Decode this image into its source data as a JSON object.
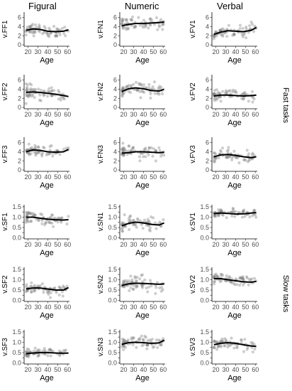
{
  "columns": [
    "Figural",
    "Numeric",
    "Verbal"
  ],
  "side_labels": [
    "Fast tasks",
    "Slow tasks"
  ],
  "chart_data": [
    {
      "type": "scatter",
      "panel": "v.FF1",
      "ylabel": "v.FF1",
      "xlabel": "Age",
      "xticks": [
        20,
        30,
        40,
        50,
        60
      ],
      "yticks": [
        0,
        2,
        4,
        6
      ],
      "ylim": [
        -0.3,
        7.2
      ],
      "xlim": [
        16,
        62
      ],
      "trend": [
        [
          18,
          3.2
        ],
        [
          25,
          3.5
        ],
        [
          32,
          3.4
        ],
        [
          40,
          3.0
        ],
        [
          48,
          2.9
        ],
        [
          56,
          3.0
        ],
        [
          61,
          3.3
        ]
      ],
      "mean": 3.2,
      "spread": 0.9
    },
    {
      "type": "scatter",
      "panel": "v.FN1",
      "ylabel": "v.FN1",
      "xlabel": "Age",
      "xticks": [
        20,
        30,
        40,
        50,
        60
      ],
      "yticks": [
        0,
        2,
        4,
        6
      ],
      "ylim": [
        -0.3,
        7.2
      ],
      "xlim": [
        16,
        62
      ],
      "trend": [
        [
          18,
          4.2
        ],
        [
          25,
          4.5
        ],
        [
          32,
          4.7
        ],
        [
          40,
          4.7
        ],
        [
          48,
          4.8
        ],
        [
          56,
          4.9
        ],
        [
          61,
          5.0
        ]
      ],
      "mean": 4.7,
      "spread": 1.0
    },
    {
      "type": "scatter",
      "panel": "v.FV1",
      "ylabel": "v.FV1",
      "xlabel": "Age",
      "xticks": [
        20,
        30,
        40,
        50,
        60
      ],
      "yticks": [
        0,
        2,
        4,
        6
      ],
      "ylim": [
        -0.3,
        7.2
      ],
      "xlim": [
        16,
        62
      ],
      "trend": [
        [
          18,
          2.3
        ],
        [
          25,
          2.8
        ],
        [
          32,
          3.1
        ],
        [
          40,
          3.0
        ],
        [
          48,
          2.9
        ],
        [
          56,
          3.2
        ],
        [
          61,
          3.8
        ]
      ],
      "mean": 3.0,
      "spread": 0.9
    },
    {
      "type": "scatter",
      "panel": "v.FF2",
      "ylabel": "v.FF2",
      "xlabel": "Age",
      "xticks": [
        20,
        30,
        40,
        50,
        60
      ],
      "yticks": [
        0,
        2,
        4,
        6
      ],
      "ylim": [
        -0.3,
        7.2
      ],
      "xlim": [
        16,
        62
      ],
      "trend": [
        [
          18,
          3.3
        ],
        [
          25,
          3.4
        ],
        [
          32,
          3.3
        ],
        [
          40,
          3.1
        ],
        [
          48,
          2.9
        ],
        [
          56,
          2.6
        ],
        [
          61,
          2.4
        ]
      ],
      "mean": 3.0,
      "spread": 1.0
    },
    {
      "type": "scatter",
      "panel": "v.FN2",
      "ylabel": "v.FN2",
      "xlabel": "Age",
      "xticks": [
        20,
        30,
        40,
        50,
        60
      ],
      "yticks": [
        0,
        2,
        4,
        6
      ],
      "ylim": [
        -0.3,
        7.2
      ],
      "xlim": [
        16,
        62
      ],
      "trend": [
        [
          18,
          3.5
        ],
        [
          25,
          4.1
        ],
        [
          32,
          4.3
        ],
        [
          40,
          4.1
        ],
        [
          48,
          3.7
        ],
        [
          56,
          3.6
        ],
        [
          61,
          4.0
        ]
      ],
      "mean": 3.9,
      "spread": 1.0
    },
    {
      "type": "scatter",
      "panel": "v.FV2",
      "ylabel": "v.FV2",
      "xlabel": "Age",
      "xticks": [
        20,
        30,
        40,
        50,
        60
      ],
      "yticks": [
        0,
        2,
        4,
        6
      ],
      "ylim": [
        -0.3,
        7.2
      ],
      "xlim": [
        16,
        62
      ],
      "trend": [
        [
          18,
          2.5
        ],
        [
          25,
          2.7
        ],
        [
          32,
          2.7
        ],
        [
          40,
          2.6
        ],
        [
          48,
          2.5
        ],
        [
          56,
          2.6
        ],
        [
          61,
          2.7
        ]
      ],
      "mean": 2.6,
      "spread": 0.8
    },
    {
      "type": "scatter",
      "panel": "v.FF3",
      "ylabel": "v.FF3",
      "xlabel": "Age",
      "xticks": [
        20,
        30,
        40,
        50,
        60
      ],
      "yticks": [
        0,
        2,
        4,
        6
      ],
      "ylim": [
        -0.3,
        7.2
      ],
      "xlim": [
        16,
        62
      ],
      "trend": [
        [
          18,
          4.0
        ],
        [
          25,
          4.4
        ],
        [
          32,
          4.3
        ],
        [
          40,
          4.0
        ],
        [
          48,
          3.9
        ],
        [
          56,
          4.0
        ],
        [
          61,
          4.5
        ]
      ],
      "mean": 4.1,
      "spread": 0.9
    },
    {
      "type": "scatter",
      "panel": "v.FN3",
      "ylabel": "v.FN3",
      "xlabel": "Age",
      "xticks": [
        20,
        30,
        40,
        50,
        60
      ],
      "yticks": [
        0,
        2,
        4,
        6
      ],
      "ylim": [
        -0.3,
        7.2
      ],
      "xlim": [
        16,
        62
      ],
      "trend": [
        [
          18,
          3.7
        ],
        [
          25,
          3.8
        ],
        [
          32,
          4.0
        ],
        [
          40,
          4.0
        ],
        [
          48,
          3.9
        ],
        [
          56,
          3.8
        ],
        [
          61,
          3.9
        ]
      ],
      "mean": 3.9,
      "spread": 1.0
    },
    {
      "type": "scatter",
      "panel": "v.FV3",
      "ylabel": "v.FV3",
      "xlabel": "Age",
      "xticks": [
        20,
        30,
        40,
        50,
        60
      ],
      "yticks": [
        0,
        2,
        4,
        6
      ],
      "ylim": [
        -0.3,
        7.2
      ],
      "xlim": [
        16,
        62
      ],
      "trend": [
        [
          18,
          2.9
        ],
        [
          25,
          3.3
        ],
        [
          32,
          3.4
        ],
        [
          40,
          3.2
        ],
        [
          48,
          2.9
        ],
        [
          56,
          2.7
        ],
        [
          61,
          2.9
        ]
      ],
      "mean": 3.1,
      "spread": 0.9
    },
    {
      "type": "scatter",
      "panel": "v.SF1",
      "ylabel": "v.SF1",
      "xlabel": "Age",
      "xticks": [
        20,
        30,
        40,
        50,
        60
      ],
      "yticks": [
        0.0,
        0.25,
        0.5,
        0.75,
        1.0,
        1.25,
        1.5
      ],
      "ytick_labels": [
        "0.0",
        "",
        "0.5",
        "",
        "1.0",
        "",
        "1.5"
      ],
      "ylim": [
        -0.05,
        1.6
      ],
      "xlim": [
        16,
        62
      ],
      "trend": [
        [
          18,
          1.0
        ],
        [
          25,
          1.0
        ],
        [
          32,
          0.95
        ],
        [
          40,
          0.9
        ],
        [
          48,
          0.87
        ],
        [
          56,
          0.86
        ],
        [
          61,
          0.88
        ]
      ],
      "mean": 0.93,
      "spread": 0.2
    },
    {
      "type": "scatter",
      "panel": "v.SN1",
      "ylabel": "v.SN1",
      "xlabel": "Age",
      "xticks": [
        20,
        30,
        40,
        50,
        60
      ],
      "yticks": [
        0.0,
        0.25,
        0.5,
        0.75,
        1.0,
        1.25,
        1.5
      ],
      "ytick_labels": [
        "0.0",
        "",
        "0.5",
        "",
        "1.0",
        "",
        "1.5"
      ],
      "ylim": [
        -0.05,
        1.6
      ],
      "xlim": [
        16,
        62
      ],
      "trend": [
        [
          18,
          0.58
        ],
        [
          25,
          0.7
        ],
        [
          32,
          0.76
        ],
        [
          40,
          0.72
        ],
        [
          48,
          0.65
        ],
        [
          56,
          0.62
        ],
        [
          61,
          0.72
        ]
      ],
      "mean": 0.7,
      "spread": 0.22
    },
    {
      "type": "scatter",
      "panel": "v.SV1",
      "ylabel": "v.SV1",
      "xlabel": "Age",
      "xticks": [
        20,
        30,
        40,
        50,
        60
      ],
      "yticks": [
        0.0,
        0.25,
        0.5,
        0.75,
        1.0,
        1.25,
        1.5
      ],
      "ytick_labels": [
        "0.0",
        "",
        "0.5",
        "",
        "1.0",
        "",
        "1.5"
      ],
      "ylim": [
        -0.05,
        1.6
      ],
      "xlim": [
        16,
        62
      ],
      "trend": [
        [
          18,
          1.17
        ],
        [
          25,
          1.2
        ],
        [
          32,
          1.18
        ],
        [
          40,
          1.15
        ],
        [
          48,
          1.16
        ],
        [
          56,
          1.2
        ],
        [
          61,
          1.22
        ]
      ],
      "mean": 1.18,
      "spread": 0.15
    },
    {
      "type": "scatter",
      "panel": "v.SF2",
      "ylabel": "v.SF2",
      "xlabel": "Age",
      "xticks": [
        20,
        30,
        40,
        50,
        60
      ],
      "yticks": [
        0.0,
        0.25,
        0.5,
        0.75,
        1.0,
        1.25,
        1.5
      ],
      "ytick_labels": [
        "0.0",
        "",
        "0.5",
        "",
        "1.0",
        "",
        "1.5"
      ],
      "ylim": [
        -0.05,
        1.6
      ],
      "xlim": [
        16,
        62
      ],
      "trend": [
        [
          18,
          0.55
        ],
        [
          25,
          0.6
        ],
        [
          32,
          0.6
        ],
        [
          40,
          0.55
        ],
        [
          48,
          0.5
        ],
        [
          56,
          0.5
        ],
        [
          61,
          0.62
        ]
      ],
      "mean": 0.57,
      "spread": 0.2
    },
    {
      "type": "scatter",
      "panel": "v.SN2",
      "ylabel": "v.SN2",
      "xlabel": "Age",
      "xticks": [
        20,
        30,
        40,
        50,
        60
      ],
      "yticks": [
        0.0,
        0.25,
        0.5,
        0.75,
        1.0,
        1.25,
        1.5
      ],
      "ytick_labels": [
        "0.0",
        "",
        "0.5",
        "",
        "1.0",
        "",
        "1.5"
      ],
      "ylim": [
        -0.05,
        1.6
      ],
      "xlim": [
        16,
        62
      ],
      "trend": [
        [
          18,
          0.72
        ],
        [
          25,
          0.8
        ],
        [
          32,
          0.83
        ],
        [
          40,
          0.82
        ],
        [
          48,
          0.8
        ],
        [
          56,
          0.78
        ],
        [
          61,
          0.8
        ]
      ],
      "mean": 0.8,
      "spread": 0.25
    },
    {
      "type": "scatter",
      "panel": "v.SV2",
      "ylabel": "v.SV2",
      "xlabel": "Age",
      "xticks": [
        20,
        30,
        40,
        50,
        60
      ],
      "yticks": [
        0.0,
        0.25,
        0.5,
        0.75,
        1.0,
        1.25,
        1.5
      ],
      "ytick_labels": [
        "0.0",
        "",
        "0.5",
        "",
        "1.0",
        "",
        "1.5"
      ],
      "ylim": [
        -0.05,
        1.6
      ],
      "xlim": [
        16,
        62
      ],
      "trend": [
        [
          18,
          1.05
        ],
        [
          25,
          1.05
        ],
        [
          32,
          1.0
        ],
        [
          40,
          0.95
        ],
        [
          48,
          0.9
        ],
        [
          56,
          0.88
        ],
        [
          61,
          0.92
        ]
      ],
      "mean": 0.97,
      "spread": 0.2
    },
    {
      "type": "scatter",
      "panel": "v.SF3",
      "ylabel": "v.SF3",
      "xlabel": "Age",
      "xticks": [
        20,
        30,
        40,
        50,
        60
      ],
      "yticks": [
        0.0,
        0.25,
        0.5,
        0.75,
        1.0,
        1.25,
        1.5
      ],
      "ytick_labels": [
        "0.0",
        "",
        "0.5",
        "",
        "1.0",
        "",
        "1.5"
      ],
      "ylim": [
        -0.05,
        1.6
      ],
      "xlim": [
        16,
        62
      ],
      "trend": [
        [
          18,
          0.45
        ],
        [
          25,
          0.48
        ],
        [
          32,
          0.5
        ],
        [
          40,
          0.5
        ],
        [
          48,
          0.48
        ],
        [
          56,
          0.47
        ],
        [
          61,
          0.48
        ]
      ],
      "mean": 0.48,
      "spread": 0.15
    },
    {
      "type": "scatter",
      "panel": "v.SN3",
      "ylabel": "v.SN3",
      "xlabel": "Age",
      "xticks": [
        20,
        30,
        40,
        50,
        60
      ],
      "yticks": [
        0.0,
        0.25,
        0.5,
        0.75,
        1.0,
        1.25,
        1.5
      ],
      "ytick_labels": [
        "0.0",
        "",
        "0.5",
        "",
        "1.0",
        "",
        "1.5"
      ],
      "ylim": [
        -0.05,
        1.6
      ],
      "xlim": [
        16,
        62
      ],
      "trend": [
        [
          18,
          0.9
        ],
        [
          25,
          0.98
        ],
        [
          32,
          1.0
        ],
        [
          40,
          0.98
        ],
        [
          48,
          0.95
        ],
        [
          56,
          0.97
        ],
        [
          61,
          1.1
        ]
      ],
      "mean": 0.98,
      "spread": 0.2
    },
    {
      "type": "scatter",
      "panel": "v.SV3",
      "ylabel": "v.SV3",
      "xlabel": "Age",
      "xticks": [
        20,
        30,
        40,
        50,
        60
      ],
      "yticks": [
        0.0,
        0.25,
        0.5,
        0.75,
        1.0,
        1.25,
        1.5
      ],
      "ytick_labels": [
        "0.0",
        "",
        "0.5",
        "",
        "1.0",
        "",
        "1.5"
      ],
      "ylim": [
        -0.05,
        1.6
      ],
      "xlim": [
        16,
        62
      ],
      "trend": [
        [
          18,
          0.88
        ],
        [
          25,
          0.95
        ],
        [
          32,
          0.98
        ],
        [
          40,
          0.95
        ],
        [
          48,
          0.88
        ],
        [
          56,
          0.82
        ],
        [
          61,
          0.8
        ]
      ],
      "mean": 0.9,
      "spread": 0.18
    }
  ]
}
